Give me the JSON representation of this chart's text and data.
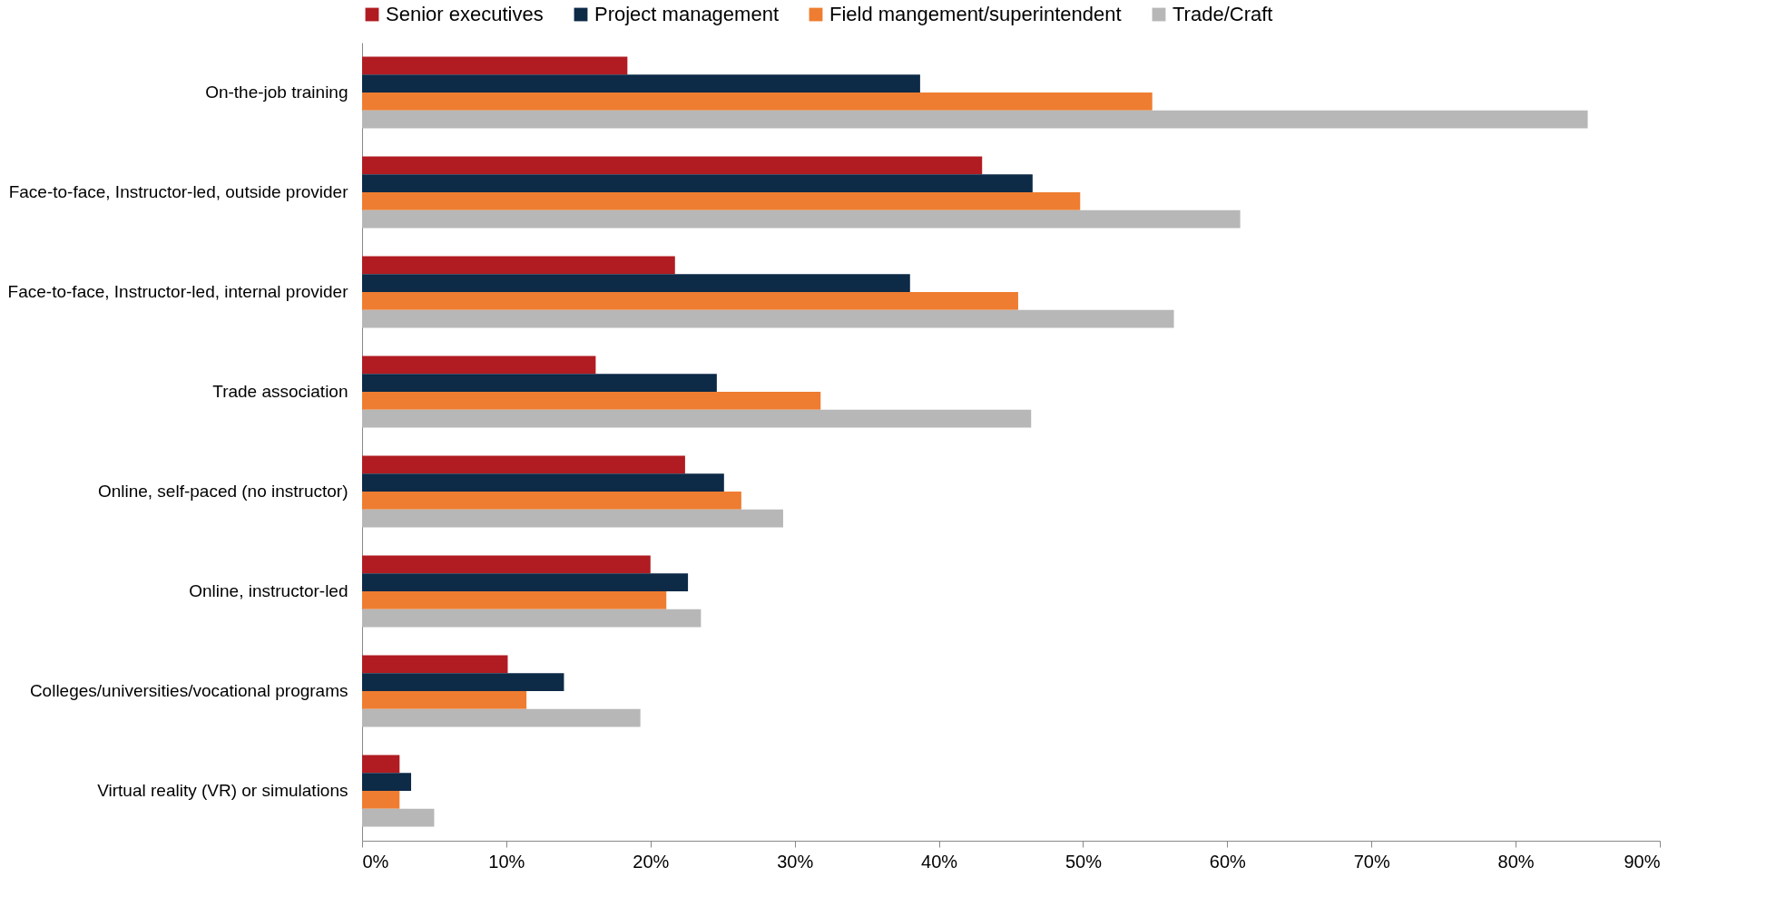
{
  "chart_data": {
    "type": "bar",
    "orientation": "horizontal",
    "categories": [
      "On-the-job training",
      "Face-to-face, Instructor-led, outside provider",
      "Face-to-face, Instructor-led, internal provider",
      "Trade association",
      "Online, self-paced (no instructor)",
      "Online, instructor-led",
      "Colleges/universities/vocational programs",
      "Virtual reality (VR) or simulations"
    ],
    "series": [
      {
        "name": "Senior executives",
        "color": "#b01c22",
        "values": [
          18.4,
          43,
          21.7,
          16.2,
          22.4,
          20,
          10.1,
          2.6
        ]
      },
      {
        "name": "Project management",
        "color": "#0d2a47",
        "values": [
          38.7,
          46.5,
          38,
          24.6,
          25.1,
          22.6,
          14,
          3.4
        ]
      },
      {
        "name": "Field mangement/superintendent",
        "color": "#ee7d31",
        "values": [
          54.8,
          49.8,
          45.5,
          31.8,
          26.3,
          21.1,
          11.4,
          2.6
        ]
      },
      {
        "name": "Trade/Craft",
        "color": "#b7b7b7",
        "values": [
          85,
          60.9,
          56.3,
          46.4,
          29.2,
          23.5,
          19.3,
          5
        ]
      }
    ],
    "xlim": [
      0,
      90
    ],
    "xticks": [
      {
        "value": 0,
        "label": "0%"
      },
      {
        "value": 10,
        "label": "10%"
      },
      {
        "value": 20,
        "label": "20%"
      },
      {
        "value": 30,
        "label": "30%"
      },
      {
        "value": 40,
        "label": "40%"
      },
      {
        "value": 50,
        "label": "50%"
      },
      {
        "value": 60,
        "label": "60%"
      },
      {
        "value": 70,
        "label": "70%"
      },
      {
        "value": 80,
        "label": "80%"
      },
      {
        "value": 90,
        "label": "90%"
      }
    ],
    "grid": false,
    "legend": "top"
  }
}
